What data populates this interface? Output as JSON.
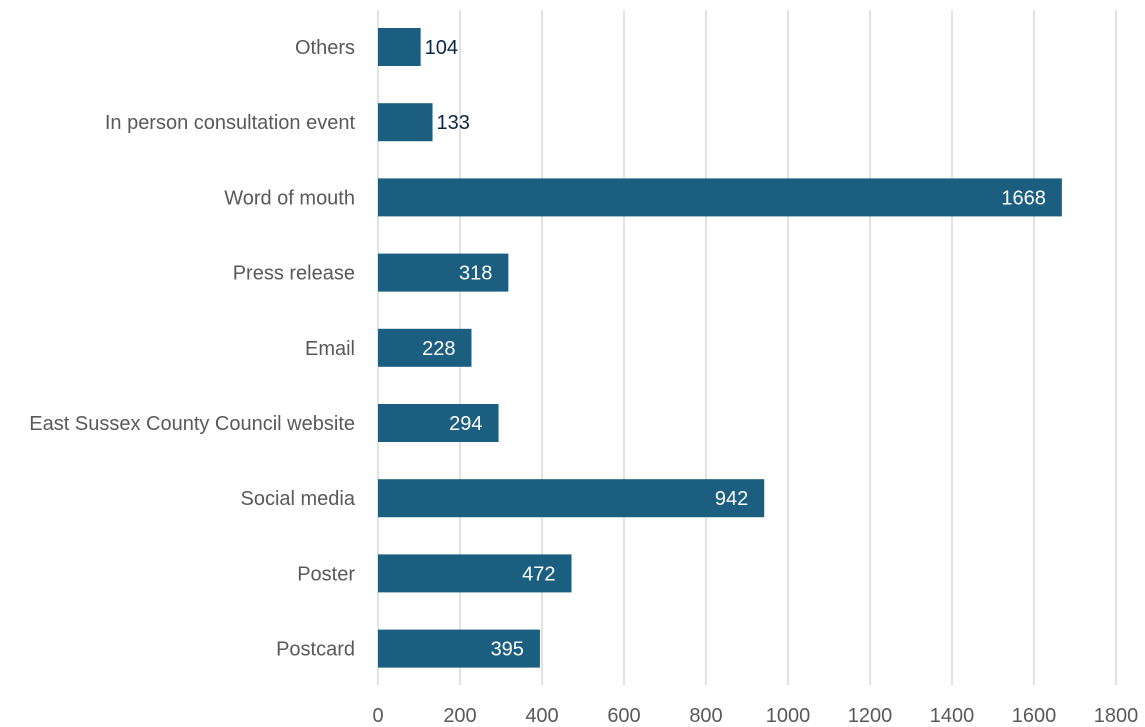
{
  "chart_data": {
    "type": "bar",
    "orientation": "horizontal",
    "categories": [
      "Others",
      "In person consultation event",
      "Word of mouth",
      "Press release",
      "Email",
      "East Sussex County Council website",
      "Social media",
      "Poster",
      "Postcard"
    ],
    "values": [
      104,
      133,
      1668,
      318,
      228,
      294,
      942,
      472,
      395
    ],
    "xlim": [
      0,
      1800
    ],
    "x_ticks": [
      0,
      200,
      400,
      600,
      800,
      1000,
      1200,
      1400,
      1600,
      1800
    ],
    "grid": "vertical",
    "bar_color": "#1b5e80",
    "label_color_inside": "#ffffff",
    "label_color_outside": "#0b2545",
    "gridline_color": "#d9d9d9",
    "title": "",
    "xlabel": "",
    "ylabel": ""
  }
}
